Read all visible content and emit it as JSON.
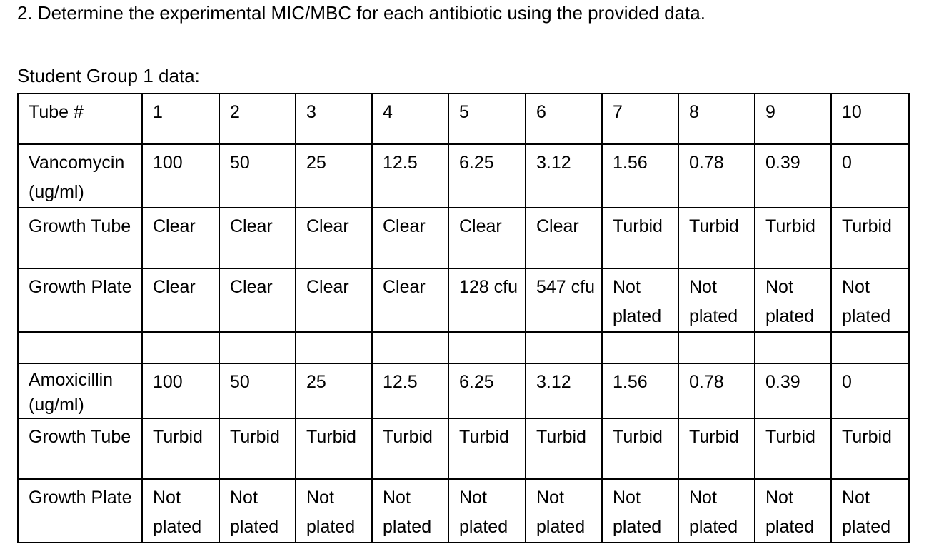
{
  "question": "2.  Determine the experimental MIC/MBC for each antibiotic using the provided data.",
  "caption": "Student Group 1 data:",
  "table": {
    "header": {
      "label": "Tube #",
      "cells": [
        "1",
        "2",
        "3",
        "4",
        "5",
        "6",
        "7",
        "8",
        "9",
        "10"
      ]
    },
    "vancomycin": {
      "concentration": {
        "label": "Vancomycin (ug/ml)",
        "cells": [
          "100",
          "50",
          "25",
          "12.5",
          "6.25",
          "3.12",
          "1.56",
          "0.78",
          "0.39",
          "0"
        ]
      },
      "growth_tube": {
        "label": "Growth Tube",
        "cells": [
          "Clear",
          "Clear",
          "Clear",
          "Clear",
          "Clear",
          "Clear",
          "Turbid",
          "Turbid",
          "Turbid",
          "Turbid"
        ]
      },
      "growth_plate": {
        "label": "Growth Plate",
        "cells": [
          "Clear",
          "Clear",
          "Clear",
          "Clear",
          "128 cfu",
          "547 cfu",
          "Not plated",
          "Not plated",
          "Not plated",
          "Not plated"
        ]
      }
    },
    "amoxicillin": {
      "concentration": {
        "label": "Amoxicillin (ug/ml)",
        "cells": [
          "100",
          "50",
          "25",
          "12.5",
          "6.25",
          "3.12",
          "1.56",
          "0.78",
          "0.39",
          "0"
        ]
      },
      "growth_tube": {
        "label": "Growth Tube",
        "cells": [
          "Turbid",
          "Turbid",
          "Turbid",
          "Turbid",
          "Turbid",
          "Turbid",
          "Turbid",
          "Turbid",
          "Turbid",
          "Turbid"
        ]
      },
      "growth_plate": {
        "label": "Growth Plate",
        "cells": [
          "Not plated",
          "Not plated",
          "Not plated",
          "Not plated",
          "Not plated",
          "Not plated",
          "Not plated",
          "Not plated",
          "Not plated",
          "Not plated"
        ]
      }
    }
  }
}
